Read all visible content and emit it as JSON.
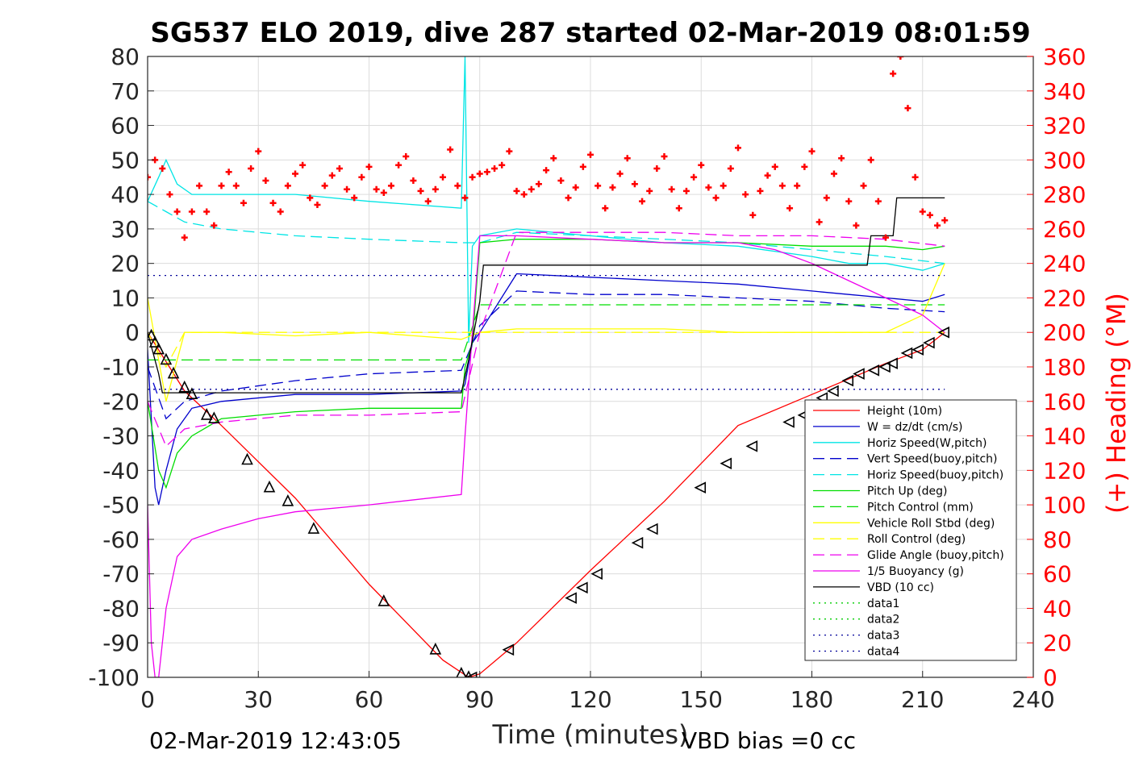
{
  "chart_data": {
    "type": "line",
    "title": "SG537 ELO 2019, dive 287 started 02-Mar-2019 08:01:59",
    "xlabel": "Time (minutes)",
    "ylabel": "",
    "ylabel_right": "(+) Heading (°M)",
    "xlim": [
      0,
      240
    ],
    "ylim": [
      -100,
      80
    ],
    "ylim_right": [
      0,
      360
    ],
    "xticks": [
      "0",
      "30",
      "60",
      "90",
      "120",
      "150",
      "180",
      "210",
      "240"
    ],
    "yticks": [
      "80",
      "70",
      "60",
      "50",
      "40",
      "30",
      "20",
      "10",
      "0",
      "-10",
      "-20",
      "-30",
      "-40",
      "-50",
      "-60",
      "-70",
      "-80",
      "-90",
      "-100"
    ],
    "yticks_right": [
      "360",
      "340",
      "320",
      "300",
      "280",
      "260",
      "240",
      "220",
      "200",
      "180",
      "160",
      "140",
      "120",
      "100",
      "80",
      "60",
      "40",
      "20",
      "0"
    ],
    "grid": true,
    "legend_position": "bottom-right",
    "footer_left": "02-Mar-2019 12:43:05",
    "footer_right": "VBD bias =0 cc",
    "series": [
      {
        "name": "Height (10m)",
        "color": "#ff0000",
        "style": "solid",
        "x": [
          0,
          10,
          20,
          40,
          60,
          80,
          87,
          90,
          100,
          120,
          140,
          160,
          180,
          200,
          210,
          216
        ],
        "y": [
          0,
          -17,
          -27,
          -48,
          -73,
          -95,
          -100,
          -99,
          -90,
          -69,
          -49,
          -27,
          -18,
          -9,
          -5,
          0
        ]
      },
      {
        "name": "W = dz/dt (cm/s)",
        "color": "#0000cc",
        "style": "solid",
        "x": [
          0,
          1,
          2,
          3,
          5,
          8,
          12,
          20,
          40,
          60,
          85,
          86,
          88,
          90,
          100,
          120,
          140,
          160,
          180,
          190,
          200,
          210,
          216
        ],
        "y": [
          -5,
          -25,
          -45,
          -50,
          -40,
          -28,
          -22,
          -20,
          -18,
          -18,
          -17,
          -15,
          -3,
          0,
          17,
          16,
          15,
          14,
          12,
          11,
          10,
          9,
          11
        ]
      },
      {
        "name": "Horiz Speed(W,pitch)",
        "color": "#00e5e5",
        "style": "solid",
        "x": [
          0,
          3,
          5,
          8,
          12,
          20,
          40,
          60,
          85,
          86,
          87,
          88,
          90,
          100,
          120,
          140,
          160,
          180,
          190,
          200,
          210,
          216
        ],
        "y": [
          38,
          45,
          50,
          43,
          40,
          40,
          40,
          38,
          36,
          80,
          -3,
          25,
          28,
          30,
          28,
          26,
          25,
          22,
          20,
          20,
          18,
          20
        ]
      },
      {
        "name": "Vert Speed(buoy,pitch)",
        "color": "#0000cc",
        "style": "dashed",
        "x": [
          0,
          5,
          10,
          20,
          40,
          60,
          85,
          90,
          100,
          120,
          140,
          160,
          180,
          200,
          216
        ],
        "y": [
          -10,
          -25,
          -20,
          -17,
          -14,
          -12,
          -11,
          2,
          12,
          11,
          11,
          10,
          9,
          7,
          6
        ]
      },
      {
        "name": "Horiz Speed(buoy,pitch)",
        "color": "#00e5e5",
        "style": "dashed",
        "x": [
          0,
          5,
          10,
          20,
          40,
          60,
          85,
          90,
          100,
          120,
          140,
          160,
          180,
          200,
          216
        ],
        "y": [
          38,
          35,
          32,
          30,
          28,
          27,
          26,
          26,
          29,
          28,
          27,
          26,
          24,
          22,
          20
        ]
      },
      {
        "name": "Pitch Up (deg)",
        "color": "#00dd00",
        "style": "solid",
        "x": [
          0,
          3,
          5,
          8,
          12,
          20,
          40,
          60,
          85,
          86,
          88,
          90,
          100,
          120,
          140,
          160,
          180,
          200,
          210,
          216
        ],
        "y": [
          -20,
          -40,
          -45,
          -35,
          -30,
          -25,
          -23,
          -22,
          -22,
          -10,
          -3,
          26,
          27,
          27,
          26,
          26,
          25,
          25,
          24,
          25
        ]
      },
      {
        "name": "Pitch Control (mm)",
        "color": "#00dd00",
        "style": "dashed",
        "x": [
          0,
          5,
          10,
          40,
          85,
          90,
          100,
          140,
          180,
          216
        ],
        "y": [
          -8,
          -8,
          -8,
          -8,
          -8,
          8,
          8,
          8,
          8,
          8
        ]
      },
      {
        "name": "Vehicle Roll Stbd (deg)",
        "color": "#ffff00",
        "style": "solid",
        "x": [
          0,
          5,
          10,
          20,
          40,
          60,
          85,
          90,
          100,
          120,
          140,
          160,
          180,
          200,
          210,
          216
        ],
        "y": [
          10,
          -20,
          0,
          0,
          -1,
          0,
          -2,
          0,
          1,
          1,
          1,
          0,
          0,
          0,
          5,
          20
        ]
      },
      {
        "name": "Roll Control (deg)",
        "color": "#ffff00",
        "style": "dashed",
        "x": [
          0,
          5,
          10,
          20,
          40,
          60,
          85,
          90,
          100,
          120,
          140,
          160,
          180,
          200,
          216
        ],
        "y": [
          0,
          -10,
          0,
          0,
          0,
          0,
          0,
          0,
          0,
          0,
          0,
          0,
          0,
          0,
          0
        ]
      },
      {
        "name": "Glide Angle (buoy,pitch)",
        "color": "#ee00ee",
        "style": "dashed",
        "x": [
          0,
          5,
          10,
          20,
          40,
          60,
          85,
          90,
          100,
          120,
          140,
          160,
          180,
          200,
          216
        ],
        "y": [
          -20,
          -33,
          -28,
          -26,
          -24,
          -24,
          -23,
          0,
          29,
          29,
          29,
          28,
          28,
          27,
          25
        ]
      },
      {
        "name": "1/5 Buoyancy (g)",
        "color": "#ee00ee",
        "style": "solid",
        "x": [
          0,
          1,
          2,
          3,
          5,
          8,
          12,
          20,
          30,
          40,
          60,
          85,
          86,
          88,
          90,
          100,
          120,
          140,
          160,
          170,
          180,
          190,
          200,
          210,
          216
        ],
        "y": [
          -50,
          -90,
          -100,
          -100,
          -80,
          -65,
          -60,
          -57,
          -54,
          -52,
          -50,
          -47,
          -30,
          0,
          28,
          28,
          27,
          26,
          26,
          24,
          20,
          15,
          10,
          5,
          0
        ]
      },
      {
        "name": "VBD (10 cc)",
        "color": "#000000",
        "style": "solid",
        "x": [
          0,
          3,
          4,
          85,
          87,
          90,
          91,
          195,
          196,
          202,
          203,
          216
        ],
        "y": [
          0,
          -12,
          -17.5,
          -17.5,
          -8,
          9,
          19.5,
          19.5,
          28,
          28,
          39,
          39
        ]
      },
      {
        "name": "data1",
        "color": "#00cc00",
        "style": "dotted",
        "x": [],
        "y": []
      },
      {
        "name": "data2",
        "color": "#00cc00",
        "style": "dotted",
        "x": [],
        "y": []
      },
      {
        "name": "data3",
        "color": "#000099",
        "style": "dotted",
        "x": [
          0,
          216
        ],
        "y": [
          16.5,
          16.5
        ]
      },
      {
        "name": "data4",
        "color": "#000099",
        "style": "dotted",
        "x": [
          0,
          216
        ],
        "y": [
          -16.5,
          -16.5
        ]
      }
    ],
    "heading": {
      "color": "#ff0000",
      "marker": "+",
      "x": [
        0,
        2,
        4,
        6,
        8,
        10,
        12,
        14,
        16,
        18,
        20,
        22,
        24,
        26,
        28,
        30,
        32,
        34,
        36,
        38,
        40,
        42,
        44,
        46,
        48,
        50,
        52,
        54,
        56,
        58,
        60,
        62,
        64,
        66,
        68,
        70,
        72,
        74,
        76,
        78,
        80,
        82,
        84,
        86,
        88,
        90,
        92,
        94,
        96,
        98,
        100,
        102,
        104,
        106,
        108,
        110,
        112,
        114,
        116,
        118,
        120,
        122,
        124,
        126,
        128,
        130,
        132,
        134,
        136,
        138,
        140,
        142,
        144,
        146,
        148,
        150,
        152,
        154,
        156,
        158,
        160,
        162,
        164,
        166,
        168,
        170,
        172,
        174,
        176,
        178,
        180,
        182,
        184,
        186,
        188,
        190,
        192,
        194,
        196,
        198,
        200,
        202,
        204,
        206,
        208,
        210,
        212,
        214,
        216
      ],
      "y": [
        290,
        300,
        295,
        280,
        270,
        255,
        270,
        285,
        270,
        262,
        285,
        293,
        285,
        275,
        295,
        305,
        288,
        275,
        270,
        285,
        292,
        297,
        278,
        274,
        285,
        291,
        295,
        283,
        278,
        290,
        296,
        283,
        281,
        285,
        297,
        302,
        288,
        282,
        276,
        283,
        290,
        306,
        285,
        278,
        290,
        292,
        293,
        295,
        297,
        305,
        282,
        280,
        283,
        286,
        294,
        301,
        288,
        278,
        284,
        296,
        303,
        285,
        272,
        284,
        292,
        301,
        286,
        276,
        282,
        295,
        302,
        283,
        272,
        282,
        290,
        297,
        284,
        278,
        285,
        295,
        307,
        280,
        268,
        282,
        291,
        296,
        285,
        272,
        285,
        296,
        305,
        264,
        278,
        292,
        301,
        276,
        262,
        285,
        300,
        276,
        255,
        350,
        360,
        330,
        290,
        270,
        268,
        262,
        265
      ]
    },
    "markers_down": {
      "x": [
        1,
        2,
        3,
        5,
        7,
        10,
        12,
        16,
        18,
        27,
        33,
        38,
        45,
        64,
        78,
        85,
        87
      ],
      "y": [
        -1,
        -3,
        -5,
        -8,
        -12,
        -16,
        -18,
        -24,
        -25,
        -37,
        -45,
        -49,
        -57,
        -78,
        -92,
        -99,
        -100
      ]
    },
    "markers_up": {
      "x": [
        88,
        98,
        115,
        118,
        122,
        133,
        137,
        150,
        157,
        164,
        174,
        178,
        183,
        186,
        190,
        193,
        197,
        200,
        202,
        206,
        209,
        212,
        216
      ],
      "y": [
        -100,
        -92,
        -77,
        -74,
        -70,
        -61,
        -57,
        -45,
        -38,
        -33,
        -26,
        -24,
        -19,
        -17,
        -14,
        -12,
        -11,
        -10,
        -9,
        -6,
        -5,
        -3,
        0
      ]
    }
  }
}
